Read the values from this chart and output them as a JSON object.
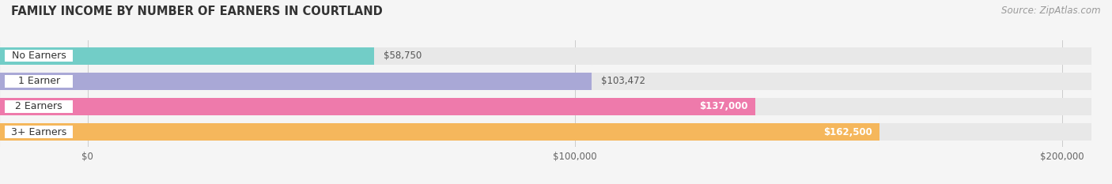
{
  "title": "FAMILY INCOME BY NUMBER OF EARNERS IN COURTLAND",
  "source": "Source: ZipAtlas.com",
  "categories": [
    "No Earners",
    "1 Earner",
    "2 Earners",
    "3+ Earners"
  ],
  "values": [
    58750,
    103472,
    137000,
    162500
  ],
  "bar_colors": [
    "#72cdc7",
    "#a9a8d6",
    "#ee7aab",
    "#f5b75c"
  ],
  "bar_bg_color": "#e8e8e8",
  "label_bg_color": "#ffffff",
  "max_value": 200000,
  "xticks": [
    0,
    100000,
    200000
  ],
  "xtick_labels": [
    "$0",
    "$100,000",
    "$200,000"
  ],
  "value_labels": [
    "$58,750",
    "$103,472",
    "$137,000",
    "$162,500"
  ],
  "value_label_colors": [
    "#555555",
    "#555555",
    "#ffffff",
    "#ffffff"
  ],
  "background_color": "#f5f5f5",
  "title_fontsize": 10.5,
  "source_fontsize": 8.5,
  "bar_label_fontsize": 8.5,
  "tick_fontsize": 8.5,
  "category_fontsize": 9
}
